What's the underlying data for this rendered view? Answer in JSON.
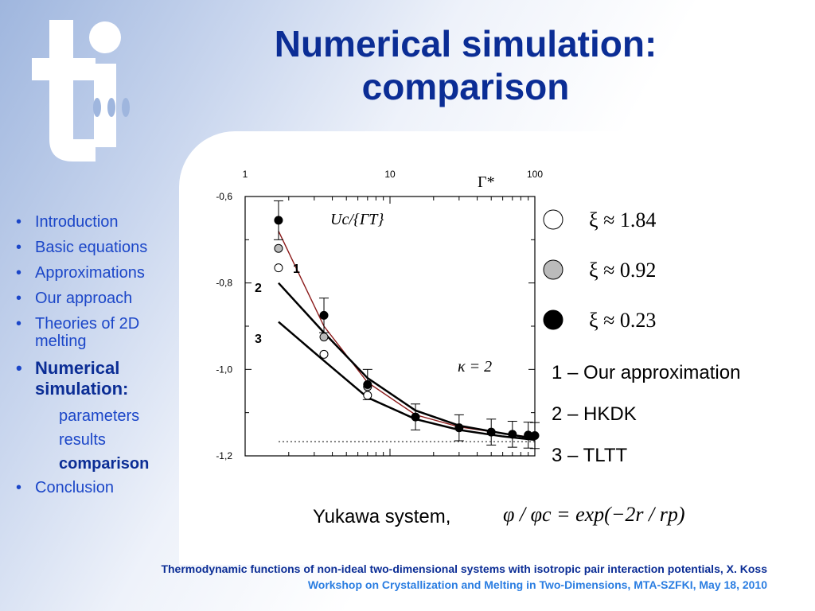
{
  "title_line1": "Numerical simulation:",
  "title_line2": "comparison",
  "outline": [
    {
      "label": "Introduction",
      "level": 1,
      "active": false
    },
    {
      "label": "Basic equations",
      "level": 1,
      "active": false
    },
    {
      "label": "Approximations",
      "level": 1,
      "active": false
    },
    {
      "label": "Our approach",
      "level": 1,
      "active": false
    },
    {
      "label": "Theories of 2D melting",
      "level": 1,
      "active": false
    },
    {
      "label": "Numerical simulation:",
      "level": 1,
      "active": true
    },
    {
      "label": "parameters",
      "level": 2,
      "active": false
    },
    {
      "label": "results",
      "level": 2,
      "active": false
    },
    {
      "label": "comparison",
      "level": 2,
      "active": true
    },
    {
      "label": "Conclusion",
      "level": 1,
      "active": false
    }
  ],
  "legend": {
    "markers": [
      {
        "label": "ξ ≈ 1.84",
        "fill": "#ffffff"
      },
      {
        "label": "ξ ≈ 0.92",
        "fill": "#bbbbbb"
      },
      {
        "label": "ξ ≈ 0.23",
        "fill": "#000000"
      }
    ],
    "lines": [
      "1 – Our approximation",
      "2 – HKDK",
      "3 – TLTT"
    ]
  },
  "yukawa_label": "Yukawa system,",
  "formula": "φ / φc = exp(−2r / rp)",
  "footer": {
    "line1": "Thermodynamic functions of non-ideal two-dimensional systems with isotropic pair interaction potentials, X. Koss",
    "line2": "Workshop on Crystallization and Melting in Two-Dimensions, MTA-SZFKI, May 18, 2010"
  },
  "colors": {
    "title": "#0b2d95",
    "bullet": "#1b46c8",
    "footer2": "#2a7de1",
    "curve1": "#8b1a1a"
  },
  "chart_data": {
    "type": "line",
    "xscale": "log",
    "xlim": [
      1,
      100
    ],
    "ylim": [
      -1.2,
      -0.6
    ],
    "x_tick_labels": [
      "1",
      "10",
      "100"
    ],
    "y_tick_labels": [
      "-0,6",
      "-0,8",
      "-1,0",
      "-1,2"
    ],
    "xlabel": "Γ*",
    "ylabel": "Uc/{ΓT}",
    "annotation": "κ = 2",
    "series": [
      {
        "name": "ξ ≈ 1.84",
        "marker": "open",
        "x": [
          1.7,
          3.5,
          7.0
        ],
        "y": [
          -0.765,
          -0.965,
          -1.06
        ]
      },
      {
        "name": "ξ ≈ 0.92",
        "marker": "gray",
        "x": [
          1.7,
          3.5,
          7.0
        ],
        "y": [
          -0.72,
          -0.925,
          -1.04
        ]
      },
      {
        "name": "ξ ≈ 0.23",
        "marker": "filled",
        "x": [
          1.7,
          3.5,
          7.0,
          15,
          30,
          50,
          70,
          90,
          100
        ],
        "y": [
          -0.655,
          -0.875,
          -1.035,
          -1.11,
          -1.135,
          -1.145,
          -1.15,
          -1.152,
          -1.153
        ],
        "yerr": [
          0.045,
          0.04,
          0.035,
          0.03,
          0.03,
          0.03,
          0.03,
          0.03,
          0.03
        ]
      },
      {
        "name": "1",
        "marker": "none",
        "x": [
          1.7,
          3.5,
          7.0,
          15,
          30,
          60,
          100
        ],
        "y": [
          -0.68,
          -0.9,
          -1.03,
          -1.105,
          -1.133,
          -1.148,
          -1.158
        ]
      },
      {
        "name": "2",
        "marker": "none",
        "x": [
          1.7,
          3.5,
          7.0,
          15,
          30,
          60,
          100
        ],
        "y": [
          -0.8,
          -0.915,
          -1.02,
          -1.095,
          -1.13,
          -1.148,
          -1.16
        ]
      },
      {
        "name": "3",
        "marker": "none",
        "x": [
          1.7,
          3.5,
          7.0,
          15,
          30,
          60,
          100
        ],
        "y": [
          -0.89,
          -0.98,
          -1.065,
          -1.115,
          -1.14,
          -1.155,
          -1.163
        ]
      }
    ],
    "reference_line_y": -1.167
  }
}
